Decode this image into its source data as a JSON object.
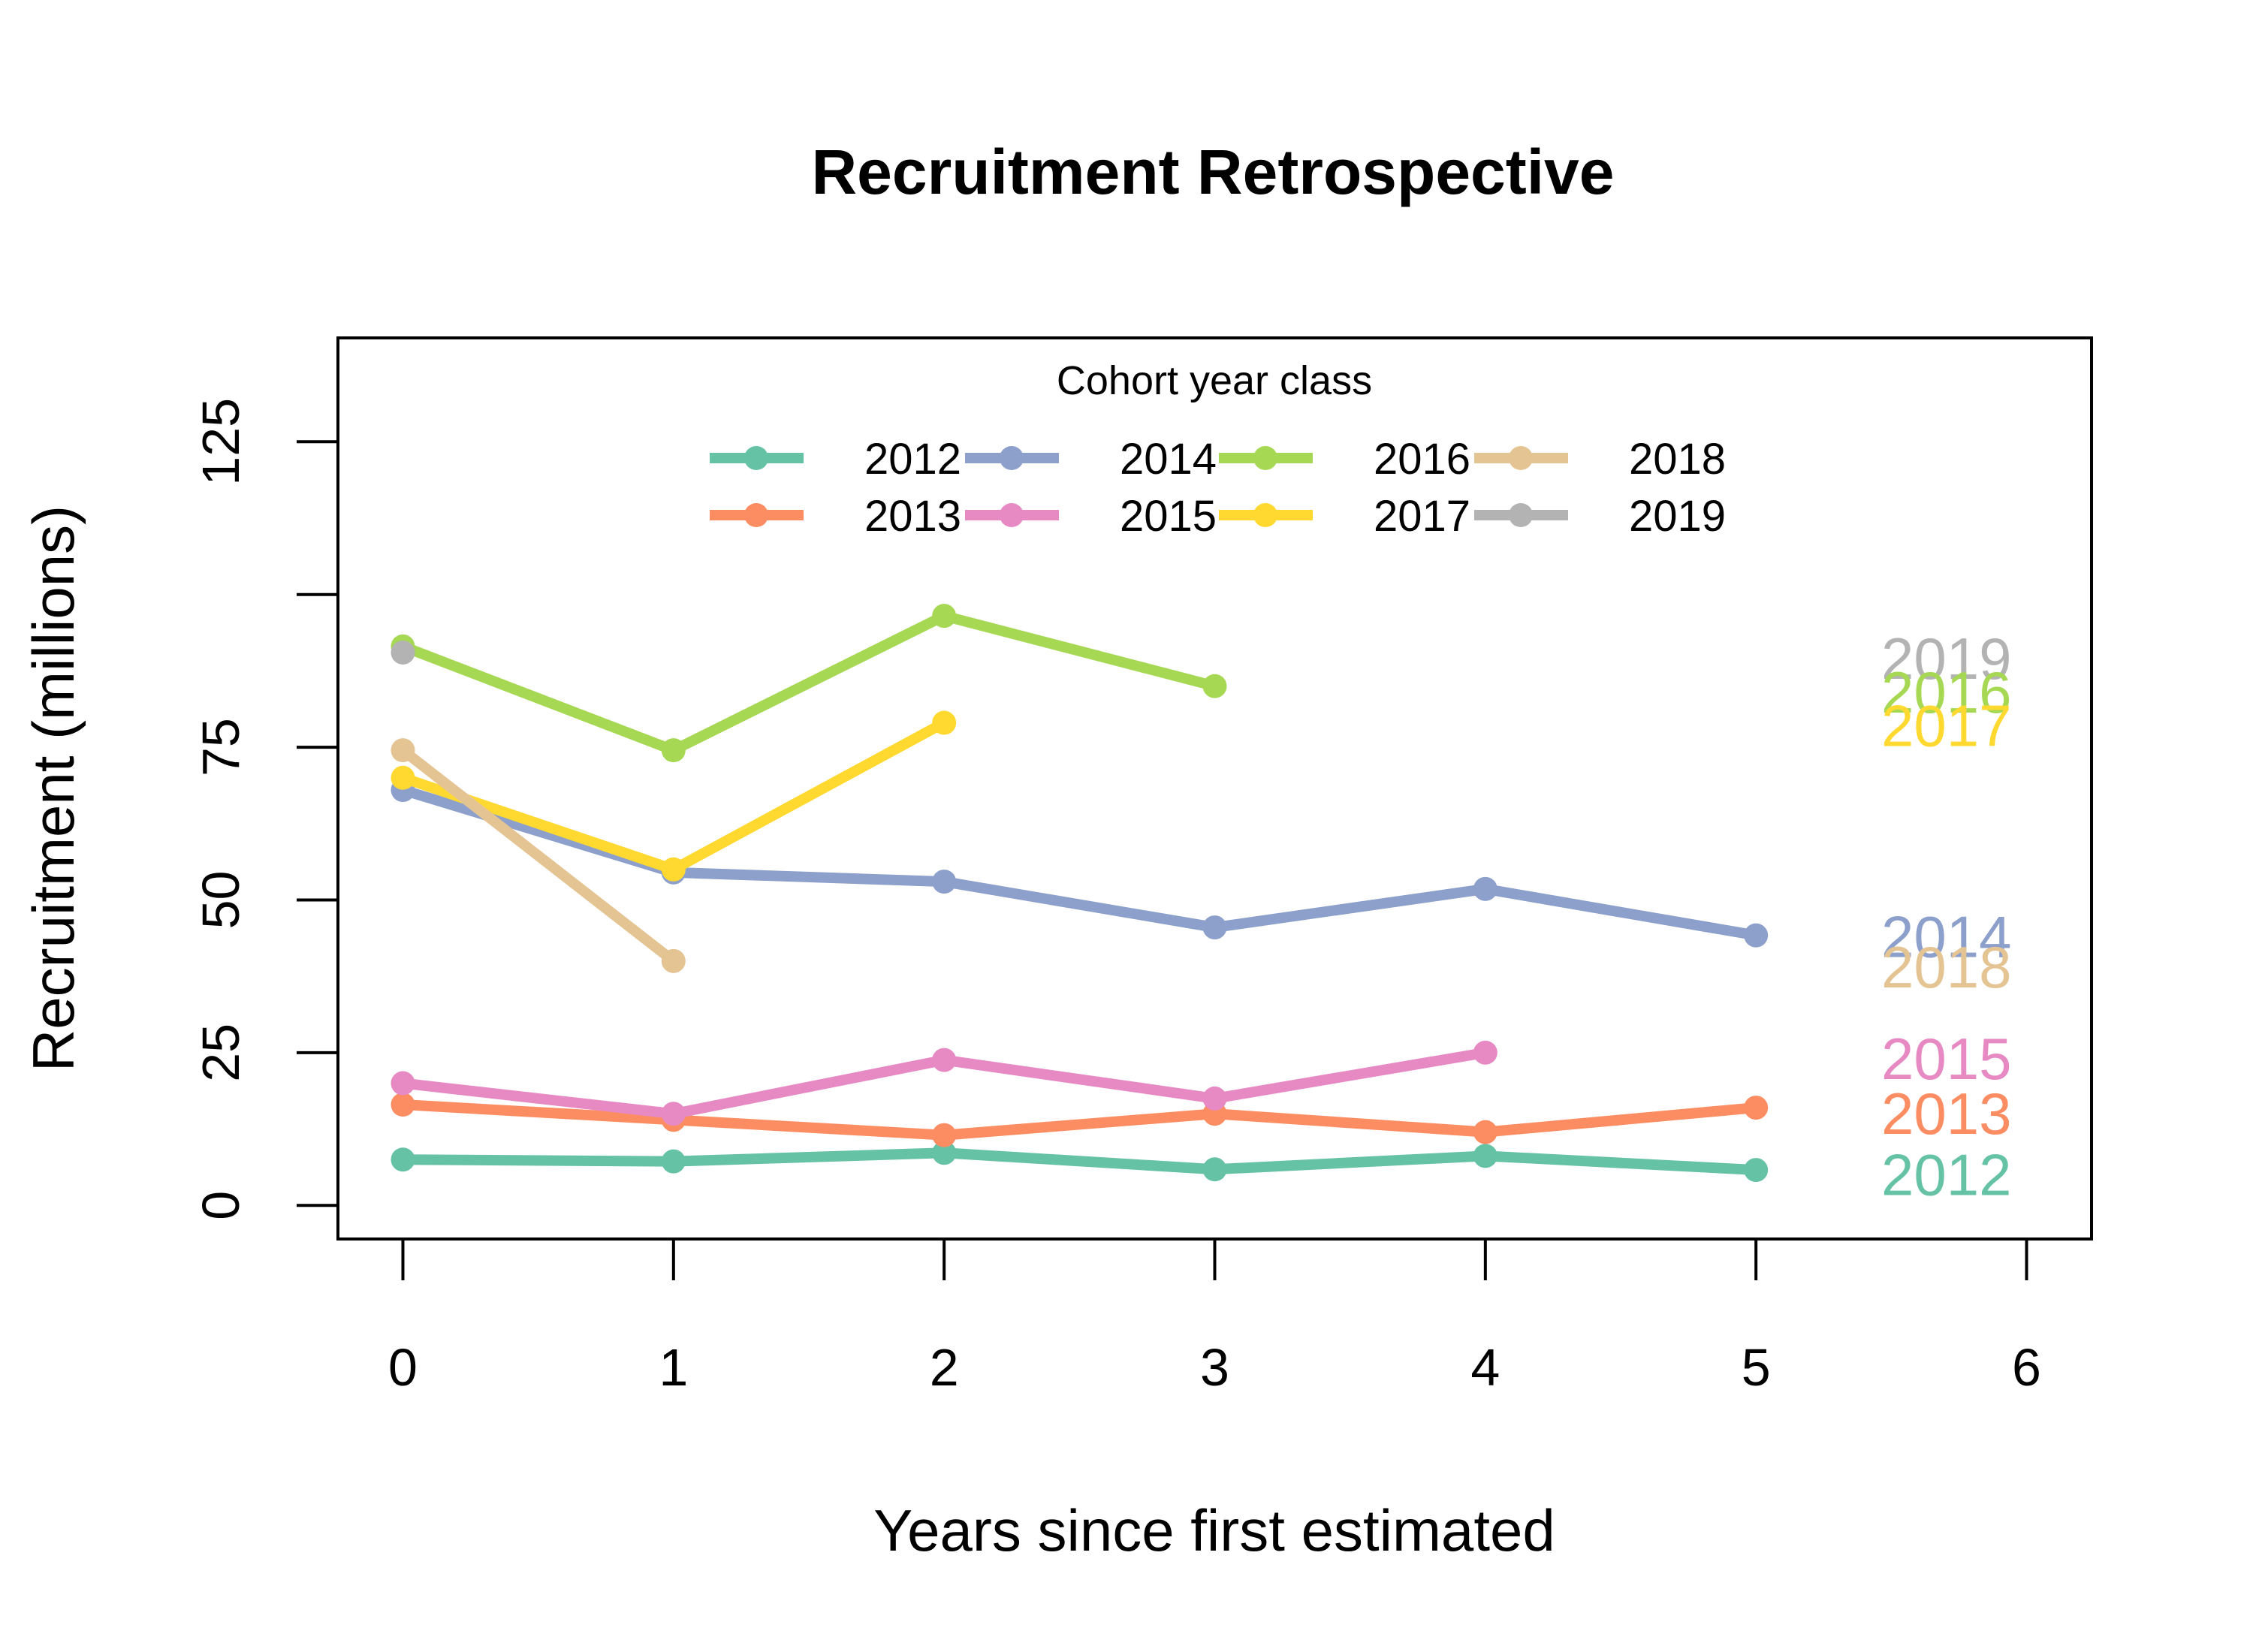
{
  "chart_data": {
    "type": "line",
    "title": "Recruitment Retrospective",
    "xlabel": "Years since first estimated",
    "ylabel": "Recruitment (millions)",
    "xlim": [
      -0.24,
      6.24
    ],
    "ylim": [
      -5.5,
      142
    ],
    "x_ticks": [
      0,
      1,
      2,
      3,
      4,
      5,
      6
    ],
    "y_ticks": [
      0,
      25,
      50,
      75,
      100,
      125
    ],
    "y_tick_labels": [
      "0",
      "25",
      "50",
      "75",
      "",
      "125"
    ],
    "grid": false,
    "legend": {
      "title": "Cohort year class",
      "position": "top-center",
      "columns": 4
    },
    "series": [
      {
        "name": "2012",
        "color": "#66C2A5",
        "x": [
          0,
          1,
          2,
          3,
          4,
          5
        ],
        "y": [
          7.5,
          7.2,
          8.6,
          5.9,
          8.1,
          5.8
        ]
      },
      {
        "name": "2013",
        "color": "#FC8D62",
        "x": [
          0,
          1,
          2,
          3,
          4,
          5
        ],
        "y": [
          16.5,
          14.0,
          11.5,
          15.0,
          12.0,
          16.0
        ]
      },
      {
        "name": "2014",
        "color": "#8DA0CB",
        "x": [
          0,
          1,
          2,
          3,
          4,
          5
        ],
        "y": [
          68.0,
          54.5,
          53.0,
          45.5,
          51.8,
          44.2
        ]
      },
      {
        "name": "2015",
        "color": "#E78AC3",
        "x": [
          0,
          1,
          2,
          3,
          4
        ],
        "y": [
          20.0,
          15.0,
          23.8,
          17.5,
          25.0
        ]
      },
      {
        "name": "2016",
        "color": "#A6D854",
        "x": [
          0,
          1,
          2,
          3
        ],
        "y": [
          91.5,
          74.5,
          96.5,
          85.0
        ]
      },
      {
        "name": "2017",
        "color": "#FFD92F",
        "x": [
          0,
          1,
          2
        ],
        "y": [
          70.0,
          55.0,
          79.0
        ]
      },
      {
        "name": "2018",
        "color": "#E5C494",
        "x": [
          0,
          1
        ],
        "y": [
          74.5,
          40.0
        ]
      },
      {
        "name": "2019",
        "color": "#B3B3B3",
        "x": [
          0
        ],
        "y": [
          90.5
        ]
      }
    ],
    "end_labels": [
      {
        "text": "2019",
        "y": 89.5,
        "color": "#B3B3B3"
      },
      {
        "text": "2016",
        "y": 84.0,
        "color": "#A6D854"
      },
      {
        "text": "2017",
        "y": 78.5,
        "color": "#FFD92F"
      },
      {
        "text": "2014",
        "y": 44.0,
        "color": "#8DA0CB"
      },
      {
        "text": "2018",
        "y": 39.0,
        "color": "#E5C494"
      },
      {
        "text": "2015",
        "y": 24.0,
        "color": "#E78AC3"
      },
      {
        "text": "2013",
        "y": 15.0,
        "color": "#FC8D62"
      },
      {
        "text": "2012",
        "y": 5.0,
        "color": "#66C2A5"
      }
    ]
  }
}
